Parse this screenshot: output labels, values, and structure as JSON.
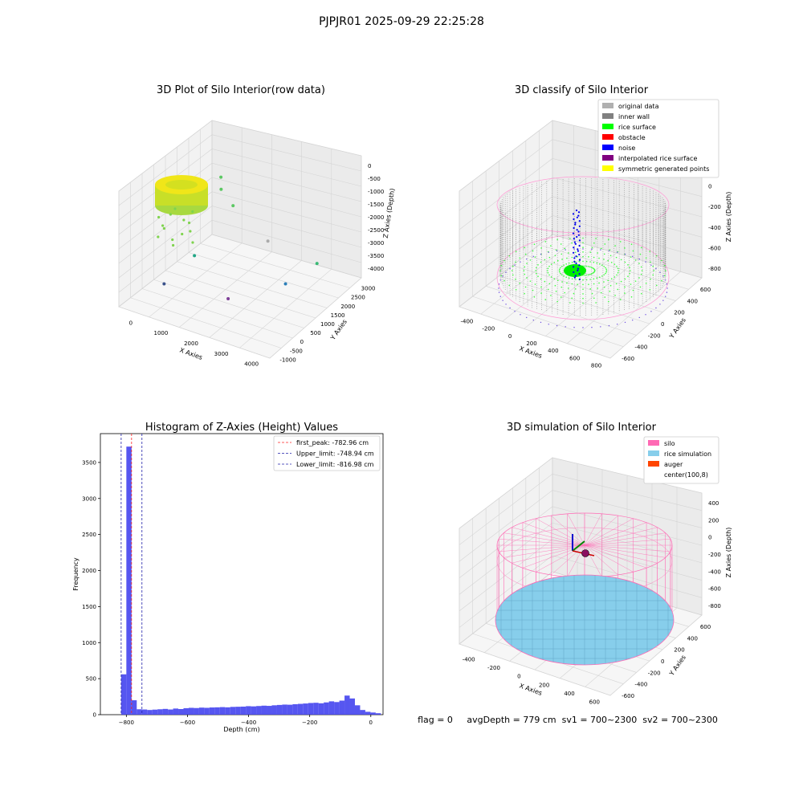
{
  "figure": {
    "suptitle": "PJPJR01 2025-09-29 22:25:28",
    "footer": "flag = 0     avgDepth = 779 cm  sv1 = 700~2300  sv2 = 700~2300"
  },
  "chart_data": [
    {
      "type": "scatter",
      "projection": "3d",
      "title": "3D Plot of Silo Interior(row data)",
      "xlabel": "X Axies",
      "ylabel": "Y Axies",
      "zlabel": "Z Axies (Depth)",
      "x_ticks": [
        "0",
        "1000",
        "2000",
        "3000",
        "4000"
      ],
      "y_ticks": [
        "-1000",
        "-500",
        "0",
        "500",
        "1000",
        "1500",
        "2000",
        "2500",
        "3000"
      ],
      "z_ticks": [
        "0",
        "-500",
        "-1000",
        "-1500",
        "-2000",
        "-2500",
        "-3000",
        "-3500",
        "-4000"
      ],
      "dense_cluster": {
        "x_range": [
          -500,
          0
        ],
        "y_range": [
          2500,
          3000
        ],
        "z_range": [
          -1200,
          -600
        ],
        "color": "#e6e619"
      },
      "outliers": [
        {
          "x": 100,
          "y": 2700,
          "z": -1500,
          "color": "#5cc863"
        },
        {
          "x": 300,
          "y": 2400,
          "z": -1700,
          "color": "#5cc863"
        },
        {
          "x": 800,
          "y": 2200,
          "z": -2000,
          "color": "#5cc863"
        },
        {
          "x": 2400,
          "y": 1400,
          "z": -2200,
          "color": "#aaaaaa"
        },
        {
          "x": 3800,
          "y": 1600,
          "z": -2600,
          "color": "#3aba76"
        },
        {
          "x": 500,
          "y": 800,
          "z": -3200,
          "color": "#21a685"
        },
        {
          "x": 3400,
          "y": 700,
          "z": -3000,
          "color": "#2c7fb8"
        },
        {
          "x": 200,
          "y": -200,
          "z": -3800,
          "color": "#3b528b"
        },
        {
          "x": 2000,
          "y": 100,
          "z": -3800,
          "color": "#7e3f98"
        }
      ]
    },
    {
      "type": "scatter",
      "projection": "3d",
      "title": "3D classify of Silo Interior",
      "xlabel": "X Axies",
      "ylabel": "Y Axies",
      "zlabel": "Z Axies (Depth)",
      "x_ticks": [
        "-400",
        "-200",
        "0",
        "200",
        "400",
        "600",
        "800"
      ],
      "y_ticks": [
        "-600",
        "-400",
        "-200",
        "0",
        "200",
        "400",
        "600"
      ],
      "z_ticks": [
        "200",
        "0",
        "-200",
        "-400",
        "-600",
        "-800"
      ],
      "legend_position": "top-right",
      "legend": [
        {
          "label": "original data",
          "color": "#b0b0b0"
        },
        {
          "label": "inner wall",
          "color": "#808080"
        },
        {
          "label": "rice surface",
          "color": "#00ff00"
        },
        {
          "label": "obstacle",
          "color": "#ff0000"
        },
        {
          "label": "noise",
          "color": "#0000ff"
        },
        {
          "label": "interpolated rice surface",
          "color": "#800080"
        },
        {
          "label": "symmetric generated points",
          "color": "#ffff00"
        }
      ]
    },
    {
      "type": "bar",
      "title": "Histogram of Z-Axies (Height) Values",
      "xlabel": "Depth (cm)",
      "ylabel": "Frequency",
      "xlim": [
        -885,
        40
      ],
      "ylim": [
        0,
        3900
      ],
      "x_ticks": [
        -800,
        -600,
        -400,
        -200,
        0
      ],
      "y_ticks": [
        0,
        500,
        1000,
        1500,
        2000,
        2500,
        3000,
        3500
      ],
      "bar_color": "#4444ee",
      "bin_width": 17,
      "bin_start": -817,
      "values": [
        560,
        3720,
        200,
        75,
        72,
        65,
        70,
        75,
        80,
        72,
        85,
        78,
        90,
        95,
        92,
        98,
        95,
        100,
        102,
        105,
        102,
        108,
        110,
        112,
        118,
        115,
        120,
        125,
        122,
        130,
        135,
        140,
        138,
        145,
        150,
        155,
        162,
        165,
        158,
        170,
        185,
        175,
        195,
        265,
        225,
        130,
        65,
        40,
        30,
        20
      ],
      "legend_position": "top-right",
      "vlines": [
        {
          "label": "first_peak: -782.96 cm",
          "x": -782.96,
          "color": "#ff2222"
        },
        {
          "label": "Upper_limit: -748.94 cm",
          "x": -748.94,
          "color": "#2222aa"
        },
        {
          "label": "Lower_limit: -816.98 cm",
          "x": -816.98,
          "color": "#2222aa"
        }
      ]
    },
    {
      "type": "scatter",
      "projection": "3d",
      "title": "3D simulation of Silo Interior",
      "xlabel": "X Axies",
      "ylabel": "Y Axies",
      "zlabel": "Z Axies (Depth)",
      "x_ticks": [
        "-400",
        "-200",
        "0",
        "200",
        "400",
        "600"
      ],
      "y_ticks": [
        "-600",
        "-400",
        "-200",
        "0",
        "200",
        "400",
        "600"
      ],
      "z_ticks": [
        "400",
        "200",
        "0",
        "-200",
        "-400",
        "-600",
        "-800"
      ],
      "legend_position": "top-right",
      "legend": [
        {
          "label": "silo",
          "color": "#ff69b4"
        },
        {
          "label": "rice simulation",
          "color": "#87ceeb"
        },
        {
          "label": "auger",
          "color": "#ff4500"
        },
        {
          "label": "center(100,8)",
          "color": "#ffffff"
        }
      ]
    }
  ]
}
